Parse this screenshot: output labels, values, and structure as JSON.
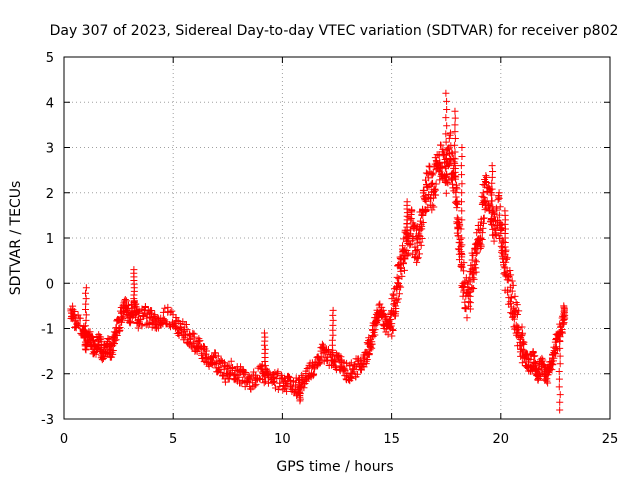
{
  "chart_data": {
    "type": "scatter",
    "title": "Day 307 of 2023, Sidereal Day-to-day VTEC variation (SDTVAR) for receiver p802",
    "xlabel": "GPS time / hours",
    "ylabel": "SDTVAR / TECUs",
    "xlim": [
      0,
      25
    ],
    "ylim": [
      -3,
      5
    ],
    "x_ticks": [
      "0",
      "5",
      "10",
      "15",
      "20",
      "25"
    ],
    "y_ticks": [
      "-3",
      "-2",
      "-1",
      "0",
      "1",
      "2",
      "3",
      "4",
      "5"
    ],
    "grid": true,
    "marker": "+",
    "series_color": "#ff0000",
    "trend": [
      [
        0.3,
        -0.6
      ],
      [
        0.5,
        -0.8
      ],
      [
        0.9,
        -1.0
      ],
      [
        1.0,
        -1.3
      ],
      [
        1.2,
        -1.2
      ],
      [
        1.4,
        -1.5
      ],
      [
        1.6,
        -1.2
      ],
      [
        1.8,
        -1.6
      ],
      [
        2.0,
        -1.4
      ],
      [
        2.2,
        -1.5
      ],
      [
        2.4,
        -1.0
      ],
      [
        2.6,
        -0.8
      ],
      [
        2.8,
        -0.5
      ],
      [
        3.0,
        -0.7
      ],
      [
        3.2,
        -0.5
      ],
      [
        3.4,
        -0.8
      ],
      [
        3.7,
        -0.7
      ],
      [
        4.0,
        -0.8
      ],
      [
        4.3,
        -0.8
      ],
      [
        4.6,
        -0.7
      ],
      [
        5.0,
        -0.8
      ],
      [
        5.3,
        -1.0
      ],
      [
        5.6,
        -1.1
      ],
      [
        5.9,
        -1.3
      ],
      [
        6.2,
        -1.4
      ],
      [
        6.5,
        -1.6
      ],
      [
        6.8,
        -1.7
      ],
      [
        7.1,
        -1.8
      ],
      [
        7.4,
        -2.0
      ],
      [
        7.7,
        -1.9
      ],
      [
        8.0,
        -2.0
      ],
      [
        8.3,
        -2.1
      ],
      [
        8.6,
        -2.2
      ],
      [
        9.0,
        -2.0
      ],
      [
        9.3,
        -2.0
      ],
      [
        9.6,
        -2.1
      ],
      [
        10.0,
        -2.2
      ],
      [
        10.3,
        -2.2
      ],
      [
        10.6,
        -2.3
      ],
      [
        10.9,
        -2.2
      ],
      [
        11.2,
        -2.0
      ],
      [
        11.5,
        -1.8
      ],
      [
        11.8,
        -1.5
      ],
      [
        12.1,
        -1.6
      ],
      [
        12.4,
        -1.7
      ],
      [
        12.7,
        -1.8
      ],
      [
        13.0,
        -2.0
      ],
      [
        13.3,
        -1.9
      ],
      [
        13.6,
        -1.8
      ],
      [
        13.9,
        -1.5
      ],
      [
        14.1,
        -1.2
      ],
      [
        14.3,
        -0.8
      ],
      [
        14.5,
        -0.6
      ],
      [
        14.7,
        -0.9
      ],
      [
        14.9,
        -1.0
      ],
      [
        15.1,
        -0.6
      ],
      [
        15.3,
        0.0
      ],
      [
        15.5,
        0.5
      ],
      [
        15.7,
        1.0
      ],
      [
        15.9,
        1.2
      ],
      [
        16.1,
        0.8
      ],
      [
        16.3,
        1.1
      ],
      [
        16.5,
        1.8
      ],
      [
        16.7,
        2.2
      ],
      [
        16.9,
        2.0
      ],
      [
        17.1,
        2.6
      ],
      [
        17.3,
        2.8
      ],
      [
        17.5,
        2.4
      ],
      [
        17.7,
        2.9
      ],
      [
        17.9,
        2.3
      ],
      [
        18.1,
        1.0
      ],
      [
        18.3,
        0.0
      ],
      [
        18.5,
        -0.4
      ],
      [
        18.7,
        0.2
      ],
      [
        18.9,
        0.8
      ],
      [
        19.1,
        1.2
      ],
      [
        19.3,
        2.2
      ],
      [
        19.5,
        1.8
      ],
      [
        19.7,
        1.3
      ],
      [
        19.9,
        1.6
      ],
      [
        20.1,
        0.6
      ],
      [
        20.3,
        0.1
      ],
      [
        20.5,
        -0.3
      ],
      [
        20.7,
        -0.8
      ],
      [
        20.9,
        -1.2
      ],
      [
        21.1,
        -1.6
      ],
      [
        21.3,
        -1.8
      ],
      [
        21.5,
        -1.7
      ],
      [
        21.7,
        -2.0
      ],
      [
        21.9,
        -1.8
      ],
      [
        22.1,
        -2.1
      ],
      [
        22.3,
        -1.8
      ],
      [
        22.5,
        -1.4
      ],
      [
        22.7,
        -1.1
      ],
      [
        22.9,
        -0.8
      ]
    ],
    "spikes": [
      [
        1.0,
        -0.1
      ],
      [
        3.2,
        0.3
      ],
      [
        9.2,
        -1.1
      ],
      [
        10.8,
        -2.6
      ],
      [
        12.3,
        -0.6
      ],
      [
        15.7,
        1.8
      ],
      [
        17.5,
        4.2
      ],
      [
        17.9,
        3.8
      ],
      [
        18.2,
        3.0
      ],
      [
        19.6,
        2.6
      ],
      [
        20.2,
        1.6
      ],
      [
        22.7,
        -2.8
      ],
      [
        22.9,
        -0.5
      ]
    ]
  }
}
